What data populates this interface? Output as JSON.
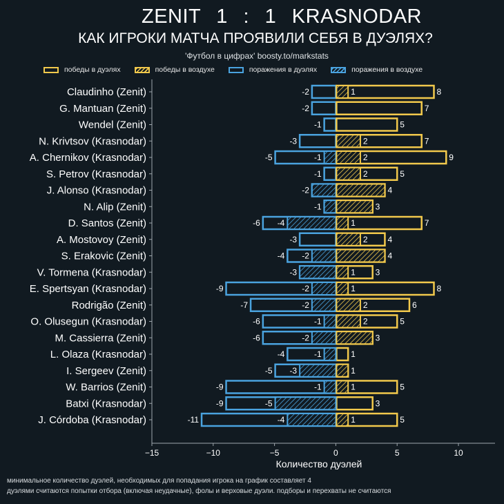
{
  "header": {
    "title": "ZENIT    1 : 1    KRASNODAR",
    "subtitle": "КАК ИГРОКИ МАТЧА ПРОЯВИЛИ СЕБЯ В ДУЭЛЯХ?",
    "source": "'Футбол в цифрах' boosty.to/markstats"
  },
  "colors": {
    "background": "#111a21",
    "wins": "#f2c94c",
    "losses": "#4aa3df",
    "axis": "#a0a8ae"
  },
  "legend": [
    {
      "label": "победы в дуэлях",
      "color": "#f2c94c",
      "hatched": false
    },
    {
      "label": "победы в воздухе",
      "color": "#f2c94c",
      "hatched": true
    },
    {
      "label": "поражения в дуэлях",
      "color": "#4aa3df",
      "hatched": false
    },
    {
      "label": "поражения в воздухе",
      "color": "#4aa3df",
      "hatched": true
    }
  ],
  "footnotes": [
    "минимальное количество дуэлей, необходимых для попадания игрока на график составляет 4",
    "дуэлями считаются попытки отбора (включая неудачные), фолы и верховые дуэли. подборы и перехваты не считаются"
  ],
  "chart_data": {
    "type": "bar",
    "orientation": "horizontal",
    "title": "ZENIT 1 : 1 KRASNODAR",
    "subtitle": "КАК ИГРОКИ МАТЧА ПРОЯВИЛИ СЕБЯ В ДУЭЛЯХ?",
    "xlabel": "Количество дуэлей",
    "ylabel": "",
    "xlim": [
      -15,
      13
    ],
    "xticks": [
      -15,
      -10,
      -5,
      0,
      5,
      10
    ],
    "xtick_labels": [
      "−15",
      "−10",
      "−5",
      "0",
      "5",
      "10"
    ],
    "grid": false,
    "legend_position": "top",
    "categories": [
      "Claudinho (Zenit)",
      "G. Mantuan (Zenit)",
      "Wendel (Zenit)",
      "N. Krivtsov (Krasnodar)",
      "A. Chernikov (Krasnodar)",
      "S. Petrov (Krasnodar)",
      "J. Alonso (Krasnodar)",
      "N. Alip (Zenit)",
      "D. Santos (Zenit)",
      "A. Mostovoy (Zenit)",
      "S. Erakovic (Zenit)",
      "V. Tormena (Krasnodar)",
      "E. Spertsyan (Krasnodar)",
      "Rodrigão (Zenit)",
      "O. Olusegun (Krasnodar)",
      "M. Cassierra (Zenit)",
      "L. Olaza (Krasnodar)",
      "I. Sergeev (Zenit)",
      "W. Barrios (Zenit)",
      "Batxi (Krasnodar)",
      "J. Córdoba (Krasnodar)"
    ],
    "series": [
      {
        "name": "победы в дуэлях",
        "values": [
          8,
          7,
          5,
          7,
          9,
          5,
          4,
          3,
          7,
          4,
          4,
          3,
          8,
          6,
          5,
          3,
          1,
          1,
          5,
          3,
          5
        ]
      },
      {
        "name": "победы в воздухе",
        "values": [
          1,
          0,
          0,
          2,
          2,
          2,
          4,
          3,
          1,
          2,
          4,
          1,
          1,
          2,
          2,
          3,
          0,
          1,
          1,
          0,
          1
        ]
      },
      {
        "name": "поражения в дуэлях",
        "values": [
          -2,
          -2,
          -1,
          -3,
          -5,
          -1,
          -2,
          -1,
          -6,
          -3,
          -4,
          -3,
          -9,
          -7,
          -6,
          -6,
          -4,
          -5,
          -9,
          -9,
          -11
        ]
      },
      {
        "name": "поражения в воздухе",
        "values": [
          0,
          0,
          0,
          0,
          -1,
          0,
          -2,
          -1,
          -4,
          0,
          -2,
          -3,
          -2,
          -2,
          -1,
          -2,
          -1,
          -3,
          -1,
          -5,
          -4
        ]
      }
    ]
  }
}
